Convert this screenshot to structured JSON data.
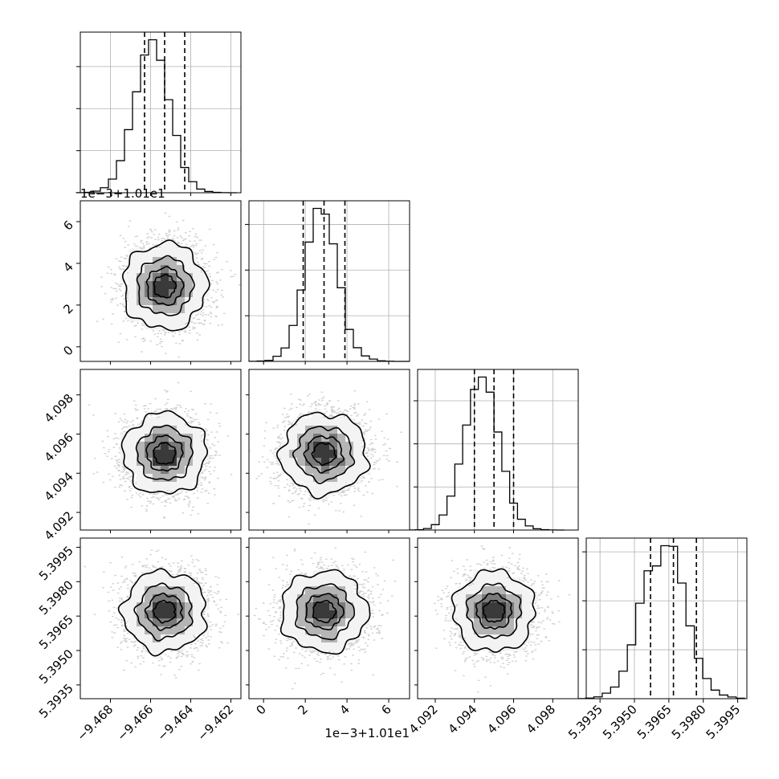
{
  "chart_data": {
    "type": "corner",
    "grid": true,
    "parameters": [
      {
        "id": "p1",
        "range": [
          -9.4695,
          -9.4615
        ],
        "hist_range": [
          -9.4697,
          -9.4617
        ],
        "center": -9.4653,
        "sd": 0.001,
        "quantiles": [
          -9.4663,
          -9.4653,
          -9.4643
        ],
        "ticks": [
          -9.468,
          -9.466,
          -9.464,
          -9.462
        ],
        "tick_labels": [
          "−9.468",
          "−9.466",
          "−9.464",
          "−9.462"
        ],
        "offset_label": ""
      },
      {
        "id": "p2",
        "range": [
          10.0993,
          10.107
        ],
        "hist_range": [
          10.0993,
          10.107
        ],
        "center": 10.1029,
        "sd": 0.001,
        "quantiles": [
          10.1019,
          10.1029,
          10.1039
        ],
        "ticks": [
          10.1,
          10.102,
          10.104,
          10.106
        ],
        "tick_labels": [
          "0",
          "2",
          "4",
          "6"
        ],
        "offset_label": "1e−3+1.01e1"
      },
      {
        "id": "p3",
        "range": [
          4.0911,
          4.0993
        ],
        "hist_range": [
          4.0906,
          4.0986
        ],
        "center": 4.095,
        "sd": 0.001,
        "quantiles": [
          4.094,
          4.095,
          4.096
        ],
        "ticks": [
          4.092,
          4.094,
          4.096,
          4.098
        ],
        "tick_labels": [
          "4.092",
          "4.094",
          "4.096",
          "4.098"
        ],
        "offset_label": ""
      },
      {
        "id": "p4",
        "range": [
          5.3929,
          5.3999
        ],
        "hist_range": [
          5.3925,
          5.3998
        ],
        "center": 5.3967,
        "sd": 0.00085,
        "quantiles": [
          5.3957,
          5.3967,
          5.3977
        ],
        "ticks": [
          5.3935,
          5.395,
          5.3965,
          5.398,
          5.3995
        ],
        "tick_labels": [
          "5.3935",
          "5.3950",
          "5.3965",
          "5.3980",
          "5.3995"
        ],
        "offset_label": ""
      }
    ],
    "histograms": [
      {
        "param": "p1",
        "counts": [
          1,
          4,
          15,
          48,
          130,
          305,
          600,
          960,
          1310,
          1455,
          1260,
          885,
          545,
          240,
          105,
          35,
          12,
          4,
          1,
          0
        ]
      },
      {
        "param": "p2",
        "counts": [
          1,
          3,
          9,
          45,
          118,
          315,
          625,
          1045,
          1340,
          1290,
          1030,
          645,
          280,
          120,
          48,
          20,
          5,
          2,
          0,
          0
        ]
      },
      {
        "param": "p3",
        "counts": [
          1,
          3,
          14,
          50,
          140,
          315,
          612,
          975,
          1305,
          1420,
          1280,
          910,
          545,
          250,
          100,
          38,
          12,
          4,
          1,
          0
        ]
      },
      {
        "param": "p4",
        "counts": [
          1,
          5,
          15,
          45,
          95,
          225,
          440,
          780,
          1045,
          1085,
          1250,
          1245,
          945,
          595,
          330,
          165,
          70,
          30,
          14,
          4
        ]
      }
    ],
    "contour_levels": [
      0.118,
      0.393,
      0.675,
      0.865
    ],
    "annotations": []
  }
}
